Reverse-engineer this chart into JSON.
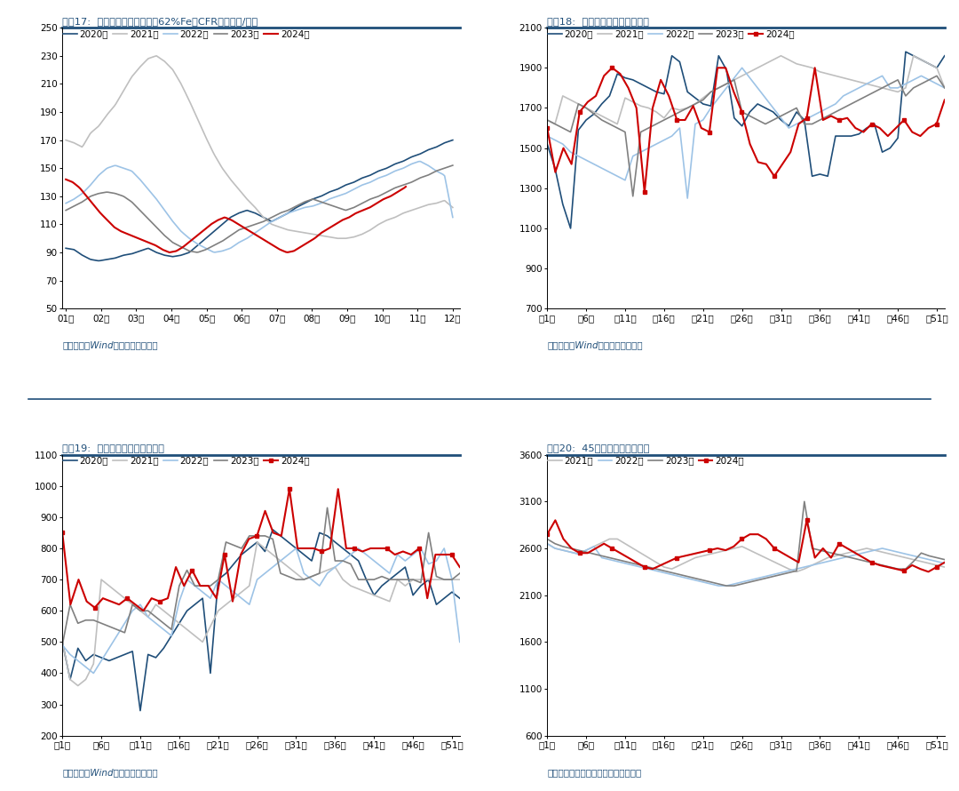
{
  "chart17": {
    "title": "图表17:  普氏铁矿石价格指数（62%Fe，CFR）（美元/吨）",
    "source": "资料来源：Wind，国盛证券研究所",
    "xtick_labels": [
      "01月",
      "02月",
      "03月",
      "04月",
      "05月",
      "06月",
      "07月",
      "08月",
      "09月",
      "10月",
      "11月",
      "12月"
    ],
    "ylim": [
      50,
      250
    ],
    "yticks": [
      50,
      70,
      90,
      110,
      130,
      150,
      170,
      190,
      210,
      230,
      250
    ],
    "series_names": [
      "2020年",
      "2021年",
      "2022年",
      "2023年",
      "2024年"
    ],
    "series_colors": [
      "#1F4E79",
      "#BFBFBF",
      "#9DC3E6",
      "#808080",
      "#CC0000"
    ],
    "series_lw": [
      1.2,
      1.2,
      1.2,
      1.2,
      1.5
    ]
  },
  "chart18": {
    "title": "图表18:  澳洲周度发货量（万吨）",
    "source": "资料来源：Wind，国盛证券研究所",
    "xtick_pos": [
      1,
      6,
      11,
      16,
      21,
      26,
      31,
      36,
      41,
      46,
      51
    ],
    "xtick_labels": [
      "第1周",
      "第6周",
      "第11周",
      "第16周",
      "第21周",
      "第26周",
      "第31周",
      "第36周",
      "第41周",
      "第46周",
      "第51周"
    ],
    "ylim": [
      700,
      2100
    ],
    "yticks": [
      700,
      900,
      1100,
      1300,
      1500,
      1700,
      1900,
      2100
    ],
    "series_names": [
      "2020年",
      "2021年",
      "2022年",
      "2023年",
      "2024年"
    ],
    "series_colors": [
      "#1F4E79",
      "#BFBFBF",
      "#9DC3E6",
      "#808080",
      "#CC0000"
    ],
    "series_lw": [
      1.2,
      1.2,
      1.2,
      1.2,
      1.5
    ],
    "has_marker": [
      false,
      false,
      false,
      false,
      true
    ]
  },
  "chart19": {
    "title": "图表19:  巴西周度发货量（万吨）",
    "source": "资料来源：Wind，国盛证券研究所",
    "xtick_pos": [
      1,
      6,
      11,
      16,
      21,
      26,
      31,
      36,
      41,
      46,
      51
    ],
    "xtick_labels": [
      "第1周",
      "第6周",
      "第11周",
      "第16周",
      "第21周",
      "第26周",
      "第31周",
      "第36周",
      "第41周",
      "第46周",
      "第51周"
    ],
    "ylim": [
      200,
      1100
    ],
    "yticks": [
      200,
      300,
      400,
      500,
      600,
      700,
      800,
      900,
      1000,
      1100
    ],
    "series_names": [
      "2020年",
      "2021年",
      "2022年",
      "2023年",
      "2024年"
    ],
    "series_colors": [
      "#1F4E79",
      "#BFBFBF",
      "#9DC3E6",
      "#808080",
      "#CC0000"
    ],
    "series_lw": [
      1.2,
      1.2,
      1.2,
      1.2,
      1.5
    ],
    "has_marker": [
      false,
      false,
      false,
      false,
      true
    ]
  },
  "chart20": {
    "title": "图表20:  45港口到港量（万吨）",
    "source": "资料来源：钢联数据，国盛证券研究所",
    "xtick_pos": [
      1,
      6,
      11,
      16,
      21,
      26,
      31,
      36,
      41,
      46,
      51
    ],
    "xtick_labels": [
      "第1周",
      "第6周",
      "第11周",
      "第16周",
      "第21周",
      "第26周",
      "第31周",
      "第36周",
      "第41周",
      "第46周",
      "第51周"
    ],
    "ylim": [
      600,
      3600
    ],
    "yticks": [
      600,
      1100,
      1600,
      2100,
      2600,
      3100,
      3600
    ],
    "series_names": [
      "2021年",
      "2022年",
      "2023年",
      "2024年"
    ],
    "series_colors": [
      "#BFBFBF",
      "#9DC3E6",
      "#808080",
      "#CC0000"
    ],
    "series_lw": [
      1.2,
      1.2,
      1.2,
      1.5
    ],
    "has_marker": [
      false,
      false,
      false,
      true
    ]
  }
}
